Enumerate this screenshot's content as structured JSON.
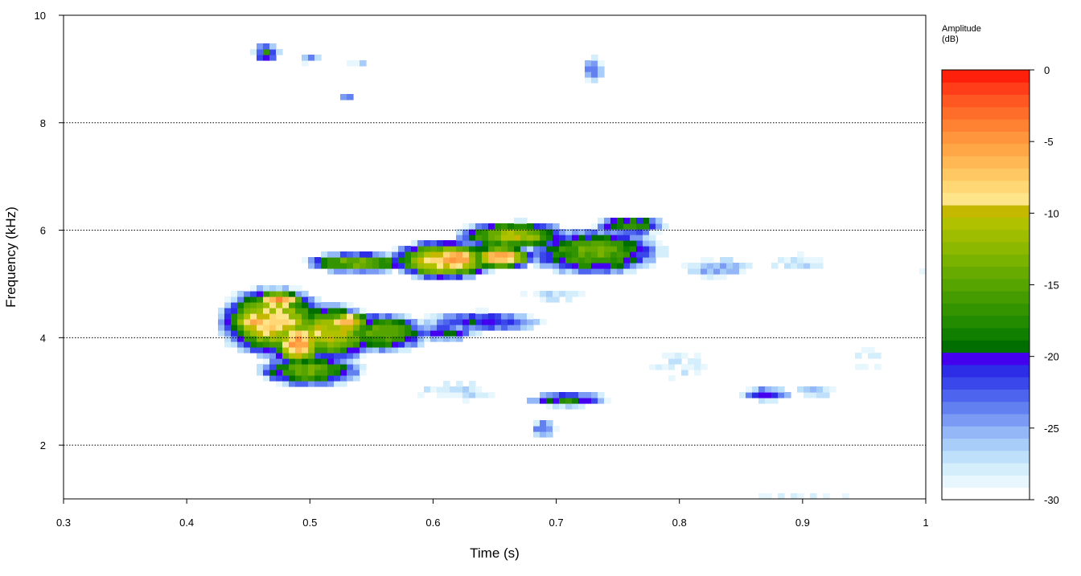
{
  "chart_data": {
    "type": "heatmap",
    "title": "",
    "xlabel": "Time (s)",
    "ylabel": "Frequency (kHz)",
    "xlim": [
      0.3,
      1.0
    ],
    "ylim": [
      1,
      10
    ],
    "x_ticks": [
      "0.3",
      "0.4",
      "0.5",
      "0.6",
      "0.7",
      "0.8",
      "0.9",
      "1"
    ],
    "x_tick_values": [
      0.3,
      0.4,
      0.5,
      0.6,
      0.7,
      0.8,
      0.9,
      1.0
    ],
    "y_ticks": [
      "2",
      "4",
      "6",
      "8",
      "10"
    ],
    "y_tick_values": [
      2,
      4,
      6,
      8,
      10
    ],
    "horizontal_gridlines": [
      2,
      4,
      6,
      8
    ],
    "grid_style": "dotted",
    "legend": {
      "title_line1": "Amplitude",
      "title_line2": "(dB)",
      "placement": "right",
      "range": [
        -30,
        0
      ],
      "ticks": [
        "0",
        "-5",
        "-10",
        "-15",
        "-20",
        "-25",
        "-30"
      ],
      "tick_values": [
        0,
        -5,
        -10,
        -15,
        -20,
        -25,
        -30
      ],
      "colors_low_to_high": [
        "#ffffff",
        "#e8f6fd",
        "#d4eefc",
        "#bfe0fb",
        "#a9cdf9",
        "#93b7f7",
        "#7a9af4",
        "#6380f1",
        "#4d64ee",
        "#3a47eb",
        "#2d2de8",
        "#4400ee",
        "#006e00",
        "#107f00",
        "#228b00",
        "#339400",
        "#449c00",
        "#56a400",
        "#68ab00",
        "#7ab200",
        "#8cb800",
        "#9ebd00",
        "#b0c100",
        "#c4b800",
        "#ffe58a",
        "#ffd774",
        "#ffc862",
        "#ffb853",
        "#ffa747",
        "#ff953c",
        "#ff8233",
        "#ff6d2a",
        "#ff5722",
        "#ff3d18",
        "#ff200c"
      ]
    },
    "blobs": [
      {
        "t": 0.47,
        "f": 4.3,
        "st": 0.03,
        "sf": 0.45,
        "amp": -8
      },
      {
        "t": 0.475,
        "f": 4.7,
        "st": 0.014,
        "sf": 0.12,
        "amp": -4
      },
      {
        "t": 0.455,
        "f": 4.3,
        "st": 0.012,
        "sf": 0.15,
        "amp": -5
      },
      {
        "t": 0.49,
        "f": 3.9,
        "st": 0.014,
        "sf": 0.3,
        "amp": -5
      },
      {
        "t": 0.515,
        "f": 4.1,
        "st": 0.03,
        "sf": 0.4,
        "amp": -10
      },
      {
        "t": 0.53,
        "f": 4.3,
        "st": 0.012,
        "sf": 0.14,
        "amp": -5
      },
      {
        "t": 0.5,
        "f": 3.4,
        "st": 0.035,
        "sf": 0.25,
        "amp": -14
      },
      {
        "t": 0.56,
        "f": 4.1,
        "st": 0.03,
        "sf": 0.3,
        "amp": -14
      },
      {
        "t": 0.54,
        "f": 5.4,
        "st": 0.035,
        "sf": 0.15,
        "amp": -13
      },
      {
        "t": 0.61,
        "f": 5.45,
        "st": 0.03,
        "sf": 0.25,
        "amp": -7
      },
      {
        "t": 0.62,
        "f": 5.5,
        "st": 0.012,
        "sf": 0.15,
        "amp": -3
      },
      {
        "t": 0.655,
        "f": 5.5,
        "st": 0.018,
        "sf": 0.15,
        "amp": -5
      },
      {
        "t": 0.665,
        "f": 5.9,
        "st": 0.035,
        "sf": 0.2,
        "amp": -11
      },
      {
        "t": 0.73,
        "f": 5.6,
        "st": 0.045,
        "sf": 0.35,
        "amp": -14
      },
      {
        "t": 0.76,
        "f": 6.1,
        "st": 0.025,
        "sf": 0.15,
        "amp": -16
      },
      {
        "t": 0.64,
        "f": 4.3,
        "st": 0.05,
        "sf": 0.2,
        "amp": -20
      },
      {
        "t": 0.61,
        "f": 4.1,
        "st": 0.025,
        "sf": 0.15,
        "amp": -19
      },
      {
        "t": 0.71,
        "f": 2.85,
        "st": 0.03,
        "sf": 0.12,
        "amp": -17
      },
      {
        "t": 0.69,
        "f": 2.3,
        "st": 0.012,
        "sf": 0.2,
        "amp": -22
      },
      {
        "t": 0.87,
        "f": 2.95,
        "st": 0.02,
        "sf": 0.12,
        "amp": -19
      },
      {
        "t": 0.91,
        "f": 3.0,
        "st": 0.02,
        "sf": 0.12,
        "amp": -24
      },
      {
        "t": 0.465,
        "f": 9.3,
        "st": 0.01,
        "sf": 0.18,
        "amp": -18
      },
      {
        "t": 0.5,
        "f": 9.2,
        "st": 0.012,
        "sf": 0.12,
        "amp": -24
      },
      {
        "t": 0.54,
        "f": 9.1,
        "st": 0.015,
        "sf": 0.08,
        "amp": -27
      },
      {
        "t": 0.53,
        "f": 8.5,
        "st": 0.006,
        "sf": 0.08,
        "amp": -22
      },
      {
        "t": 0.73,
        "f": 9.0,
        "st": 0.01,
        "sf": 0.3,
        "amp": -23
      },
      {
        "t": 0.83,
        "f": 5.3,
        "st": 0.04,
        "sf": 0.25,
        "amp": -25
      },
      {
        "t": 0.9,
        "f": 5.4,
        "st": 0.05,
        "sf": 0.25,
        "amp": -27
      },
      {
        "t": 1.0,
        "f": 5.3,
        "st": 0.03,
        "sf": 0.15,
        "amp": -28
      },
      {
        "t": 0.62,
        "f": 3.0,
        "st": 0.06,
        "sf": 0.3,
        "amp": -27
      },
      {
        "t": 0.8,
        "f": 3.5,
        "st": 0.06,
        "sf": 0.5,
        "amp": -28
      },
      {
        "t": 0.95,
        "f": 3.6,
        "st": 0.05,
        "sf": 0.6,
        "amp": -29
      },
      {
        "t": 0.7,
        "f": 4.8,
        "st": 0.05,
        "sf": 0.2,
        "amp": -27
      },
      {
        "t": 0.75,
        "f": 1.1,
        "st": 0.1,
        "sf": 0.1,
        "amp": -29
      },
      {
        "t": 0.9,
        "f": 1.05,
        "st": 0.1,
        "sf": 0.08,
        "amp": -29
      }
    ]
  }
}
